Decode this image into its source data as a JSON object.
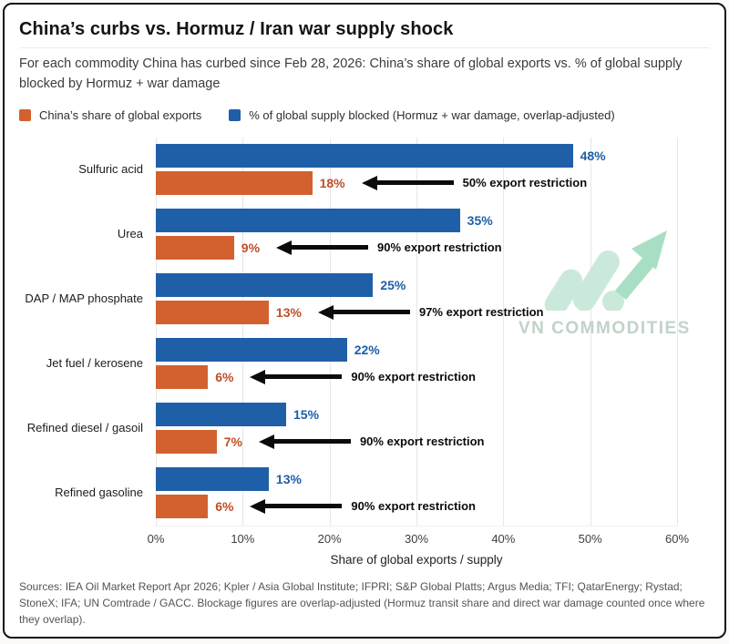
{
  "header": {
    "title": "China’s curbs vs. Hormuz / Iran war supply shock",
    "subtitle": "For each commodity China has curbed since Feb 28, 2026: China’s share of global exports vs. % of global supply blocked by Hormuz + war damage"
  },
  "legend": [
    {
      "label": "China’s share of global exports",
      "color": "#d2612f"
    },
    {
      "label": "% of global supply blocked (Hormuz + war damage, overlap-adjusted)",
      "color": "#1f5fa8"
    }
  ],
  "chart_data": {
    "type": "bar",
    "orientation": "horizontal",
    "title": "China’s curbs vs. Hormuz / Iran war supply shock",
    "categories": [
      "Sulfuric acid",
      "Urea",
      "DAP / MAP phosphate",
      "Jet fuel / kerosene",
      "Refined diesel / gasoil",
      "Refined gasoline"
    ],
    "series": [
      {
        "name": "% of global supply blocked (Hormuz + war damage, overlap-adjusted)",
        "color": "#1f5fa8",
        "label_color": "#1d5fa8",
        "values": [
          48,
          35,
          25,
          22,
          15,
          13
        ]
      },
      {
        "name": "China’s share of global exports",
        "color": "#d2612f",
        "label_color": "#bf4e28",
        "values": [
          18,
          9,
          13,
          6,
          7,
          6
        ]
      }
    ],
    "annotations": [
      "50% export restriction",
      "90% export restriction",
      "97% export restriction",
      "90% export restriction",
      "90% export restriction",
      "90% export restriction"
    ],
    "annotation_color": "#0b0b0b",
    "value_suffix": "%",
    "xlabel": "Share of global exports / supply",
    "x_ticks": [
      "0%",
      "10%",
      "20%",
      "30%",
      "40%",
      "50%",
      "60%"
    ],
    "xlim": [
      0,
      60
    ],
    "grid": true,
    "legend_position": "top"
  },
  "watermark": {
    "text": "VN COMMODITIES"
  },
  "footer": {
    "sources": "Sources: IEA Oil Market Report Apr 2026; Kpler / Asia Global Institute; IFPRI; S&P Global Platts; Argus Media; TFI; QatarEnergy; Rystad; StoneX; IFA; UN Comtrade / GACC. Blockage figures are overlap-adjusted (Hormuz transit share and direct war damage counted once where they overlap)."
  }
}
